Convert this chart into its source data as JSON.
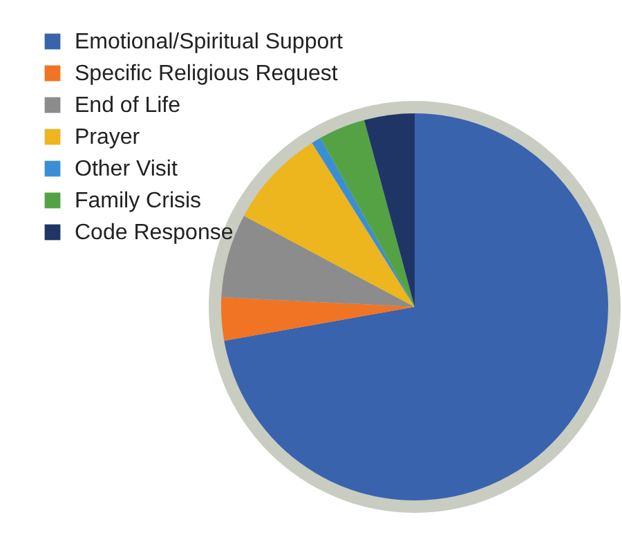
{
  "chart_data": {
    "type": "pie",
    "categories": [
      "Emotional/Spiritual Support",
      "Specific Religious Request",
      "End of Life",
      "Prayer",
      "Other Visit",
      "Family Crisis",
      "Code Response"
    ],
    "values": [
      72.2,
      3.6,
      7,
      8.3,
      0.8,
      3.9,
      4.2
    ],
    "colors": [
      "#3a63ae",
      "#f07423",
      "#8c8c8c",
      "#edb51e",
      "#3a8fd4",
      "#55a245",
      "#1f3566"
    ],
    "legend": "top left"
  }
}
